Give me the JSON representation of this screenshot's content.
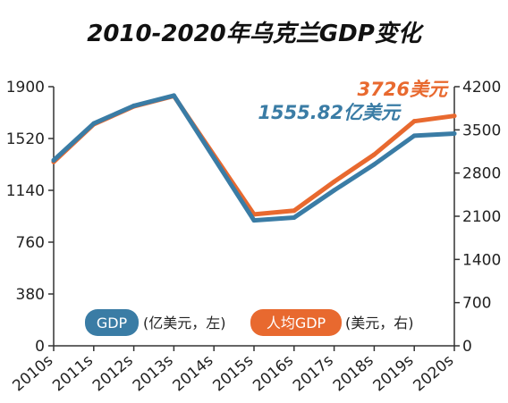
{
  "chart_data": {
    "type": "line",
    "title": "2010-2020年乌克兰GDP变化",
    "categories": [
      "2010s",
      "2011s",
      "2012s",
      "2013s",
      "2014s",
      "2015s",
      "2016s",
      "2017s",
      "2018s",
      "2019s",
      "2020s"
    ],
    "left_axis": {
      "ticks": [
        "0",
        "380",
        "760",
        "1140",
        "1520",
        "1900"
      ],
      "ylim": [
        0,
        1900
      ]
    },
    "right_axis": {
      "ticks": [
        "0",
        "700",
        "1400",
        "2100",
        "2800",
        "3500",
        "4200"
      ],
      "ylim": [
        0,
        4200
      ]
    },
    "series": [
      {
        "name": "GDP",
        "legend_note": "(亿美元，左)",
        "axis": "left",
        "color": "#3a7ca5",
        "values": [
          1360,
          1630,
          1760,
          1835,
          null,
          920,
          940,
          1140,
          1330,
          1540,
          1555.82
        ]
      },
      {
        "name": "人均GDP",
        "legend_note": "(美元，右)",
        "axis": "right",
        "color": "#e8692f",
        "values": [
          2980,
          3590,
          3880,
          4050,
          null,
          2130,
          2190,
          2660,
          3100,
          3640,
          3726
        ]
      }
    ],
    "annotations": [
      {
        "text": "3726美元",
        "series": "人均GDP",
        "color": "#e8692f"
      },
      {
        "text": "1555.82亿美元",
        "series": "GDP",
        "color": "#3a7ca5"
      }
    ],
    "grid": false,
    "legend_position": "bottom-center"
  }
}
